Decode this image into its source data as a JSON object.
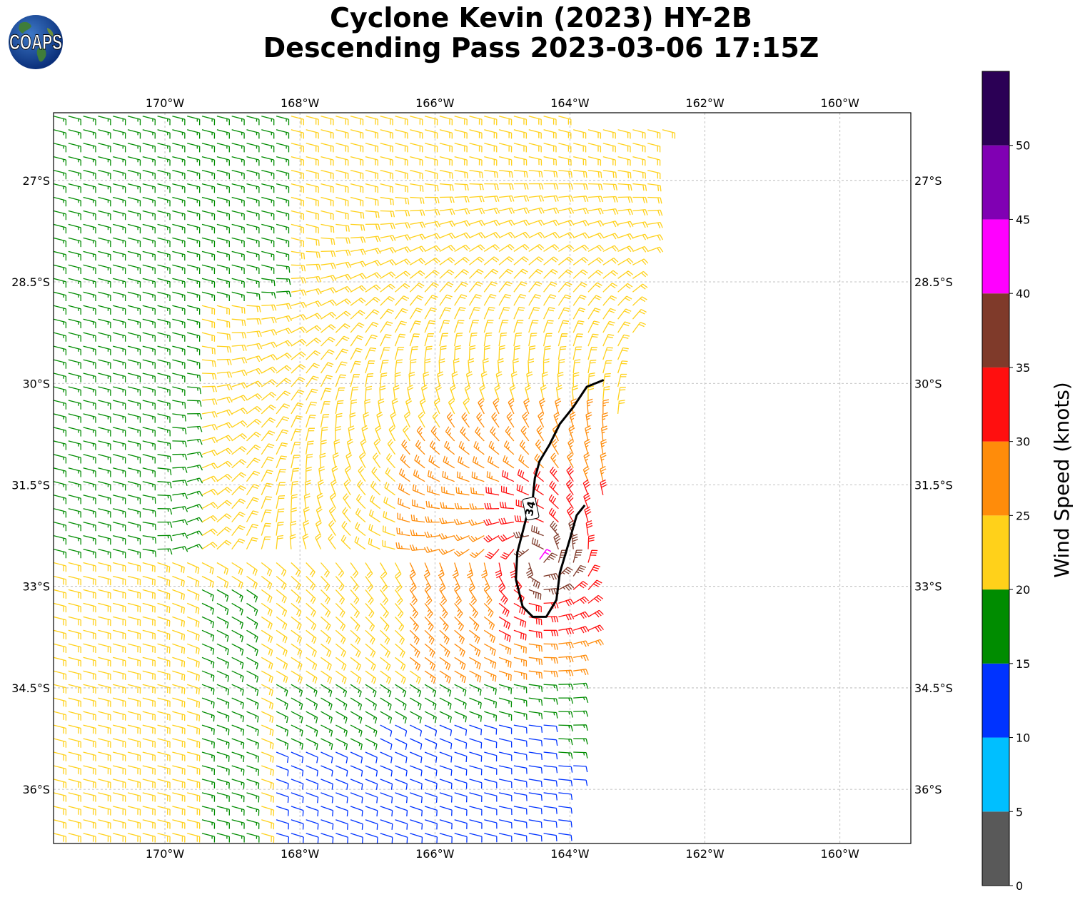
{
  "title": {
    "line1": "Cyclone Kevin (2023) HY-2B",
    "line2": "Descending Pass 2023-03-06 17:15Z"
  },
  "logo": {
    "text": "COAPS"
  },
  "chart_data": {
    "type": "wind-barb map",
    "title": "Cyclone Kevin (2023) HY-2B Descending Pass 2023-03-06 17:15Z",
    "xlim": [
      -171.65,
      -158.95
    ],
    "ylim": [
      -36.8,
      -26.0
    ],
    "x_ticks": [
      {
        "value": -170,
        "label": "170°W"
      },
      {
        "value": -168,
        "label": "168°W"
      },
      {
        "value": -166,
        "label": "166°W"
      },
      {
        "value": -164,
        "label": "164°W"
      },
      {
        "value": -162,
        "label": "162°W"
      },
      {
        "value": -160,
        "label": "160°W"
      }
    ],
    "y_ticks": [
      {
        "value": -27,
        "label": "27°S"
      },
      {
        "value": -28.5,
        "label": "28.5°S"
      },
      {
        "value": -30,
        "label": "30°S"
      },
      {
        "value": -31.5,
        "label": "31.5°S"
      },
      {
        "value": -33,
        "label": "33°S"
      },
      {
        "value": -34.5,
        "label": "34.5°S"
      },
      {
        "value": -36,
        "label": "36°S"
      }
    ],
    "grid": true,
    "colorbar": {
      "label": "Wind Speed (knots)",
      "ticks": [
        0,
        5,
        10,
        15,
        20,
        25,
        30,
        35,
        40,
        45,
        50
      ],
      "bins": [
        {
          "min": 0,
          "max": 5,
          "color": "#595959"
        },
        {
          "min": 5,
          "max": 10,
          "color": "#00bfff"
        },
        {
          "min": 10,
          "max": 15,
          "color": "#0033ff"
        },
        {
          "min": 15,
          "max": 20,
          "color": "#008c00"
        },
        {
          "min": 20,
          "max": 25,
          "color": "#ffd11a"
        },
        {
          "min": 25,
          "max": 30,
          "color": "#ff8c0a"
        },
        {
          "min": 30,
          "max": 35,
          "color": "#ff0f0f"
        },
        {
          "min": 35,
          "max": 40,
          "color": "#7f3a2a"
        },
        {
          "min": 40,
          "max": 45,
          "color": "#ff00ff"
        },
        {
          "min": 45,
          "max": 50,
          "color": "#8000b3"
        },
        {
          "min": 50,
          "max": 55,
          "color": "#2b0055"
        }
      ]
    },
    "swath": {
      "east_edge": [
        [
          -162.6,
          -26.1
        ],
        [
          -162.9,
          -28.5
        ],
        [
          -163.2,
          -30.0
        ],
        [
          -163.5,
          -31.5
        ],
        [
          -163.6,
          -33.0
        ],
        [
          -163.8,
          -34.5
        ],
        [
          -164.0,
          -36.5
        ]
      ],
      "west_edge": [
        [
          -171.65,
          -26.1
        ],
        [
          -171.65,
          -36.7
        ]
      ],
      "south_edge_lat": -36.7
    },
    "center": [
      -164.45,
      -32.6
    ],
    "contour": {
      "level_label": "34",
      "level": 34,
      "points": [
        [
          -163.5,
          -29.95
        ],
        [
          -163.75,
          -30.05
        ],
        [
          -163.95,
          -30.35
        ],
        [
          -164.15,
          -30.6
        ],
        [
          -164.3,
          -30.9
        ],
        [
          -164.45,
          -31.15
        ],
        [
          -164.52,
          -31.4
        ],
        [
          -164.55,
          -31.7
        ],
        [
          -164.65,
          -32.0
        ],
        [
          -164.78,
          -32.5
        ],
        [
          -164.8,
          -32.9
        ],
        [
          -164.7,
          -33.3
        ],
        [
          -164.55,
          -33.45
        ],
        [
          -164.35,
          -33.45
        ],
        [
          -164.2,
          -33.2
        ],
        [
          -164.15,
          -32.8
        ],
        [
          -164.0,
          -32.3
        ],
        [
          -163.9,
          -31.95
        ],
        [
          -163.78,
          -31.8
        ]
      ],
      "label_position": [
        -164.58,
        -31.85
      ]
    },
    "speed_field": {
      "description": "Approximate wind speeds (knots) shown by barb colors",
      "background_west": 18,
      "band_yellow": 22,
      "inner_ring": 28,
      "core_red": 32,
      "core_brown": 37,
      "south_blue": 12,
      "max_point": {
        "lon": -164.45,
        "lat": -32.6,
        "speed": 42
      }
    }
  }
}
